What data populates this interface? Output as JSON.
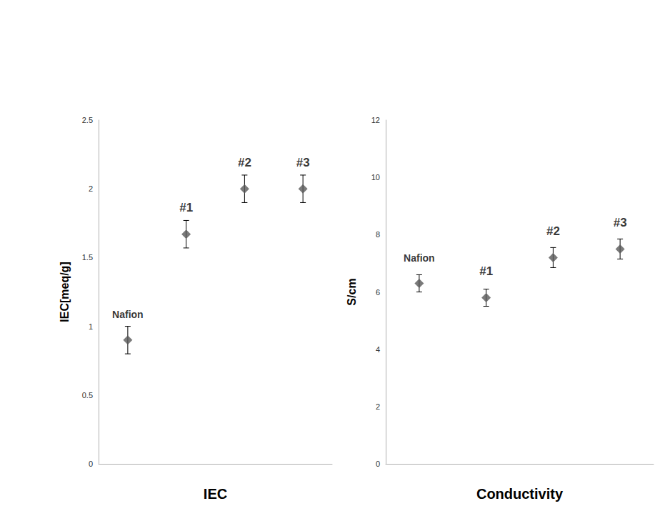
{
  "chart_data": [
    {
      "type": "scatter",
      "x_label": "IEC",
      "y_label": "IEC[meq/g]",
      "categories": [
        "Nafion",
        "#1",
        "#2",
        "#3"
      ],
      "values": [
        0.9,
        1.67,
        2.0,
        2.0
      ],
      "errors": [
        0.1,
        0.1,
        0.1,
        0.1
      ],
      "color": "#595959",
      "marker": "diamond",
      "ylim": [
        0,
        2.5
      ],
      "yticks": [
        0,
        0.5,
        1,
        1.5,
        2,
        2.5
      ],
      "grid": false,
      "tick_labels": "y"
    },
    {
      "type": "scatter",
      "x_label": "Conductivity",
      "y_label": "S/cm",
      "categories": [
        "Nafion",
        "#1",
        "#2",
        "#3"
      ],
      "values": [
        6.3,
        5.8,
        7.2,
        7.5
      ],
      "errors": [
        0.3,
        0.3,
        0.35,
        0.35
      ],
      "color": "#595959",
      "marker": "diamond",
      "ylim": [
        0,
        12
      ],
      "yticks": [
        0,
        2,
        4,
        6,
        8,
        10,
        12
      ],
      "grid": false,
      "tick_labels": "y"
    }
  ]
}
